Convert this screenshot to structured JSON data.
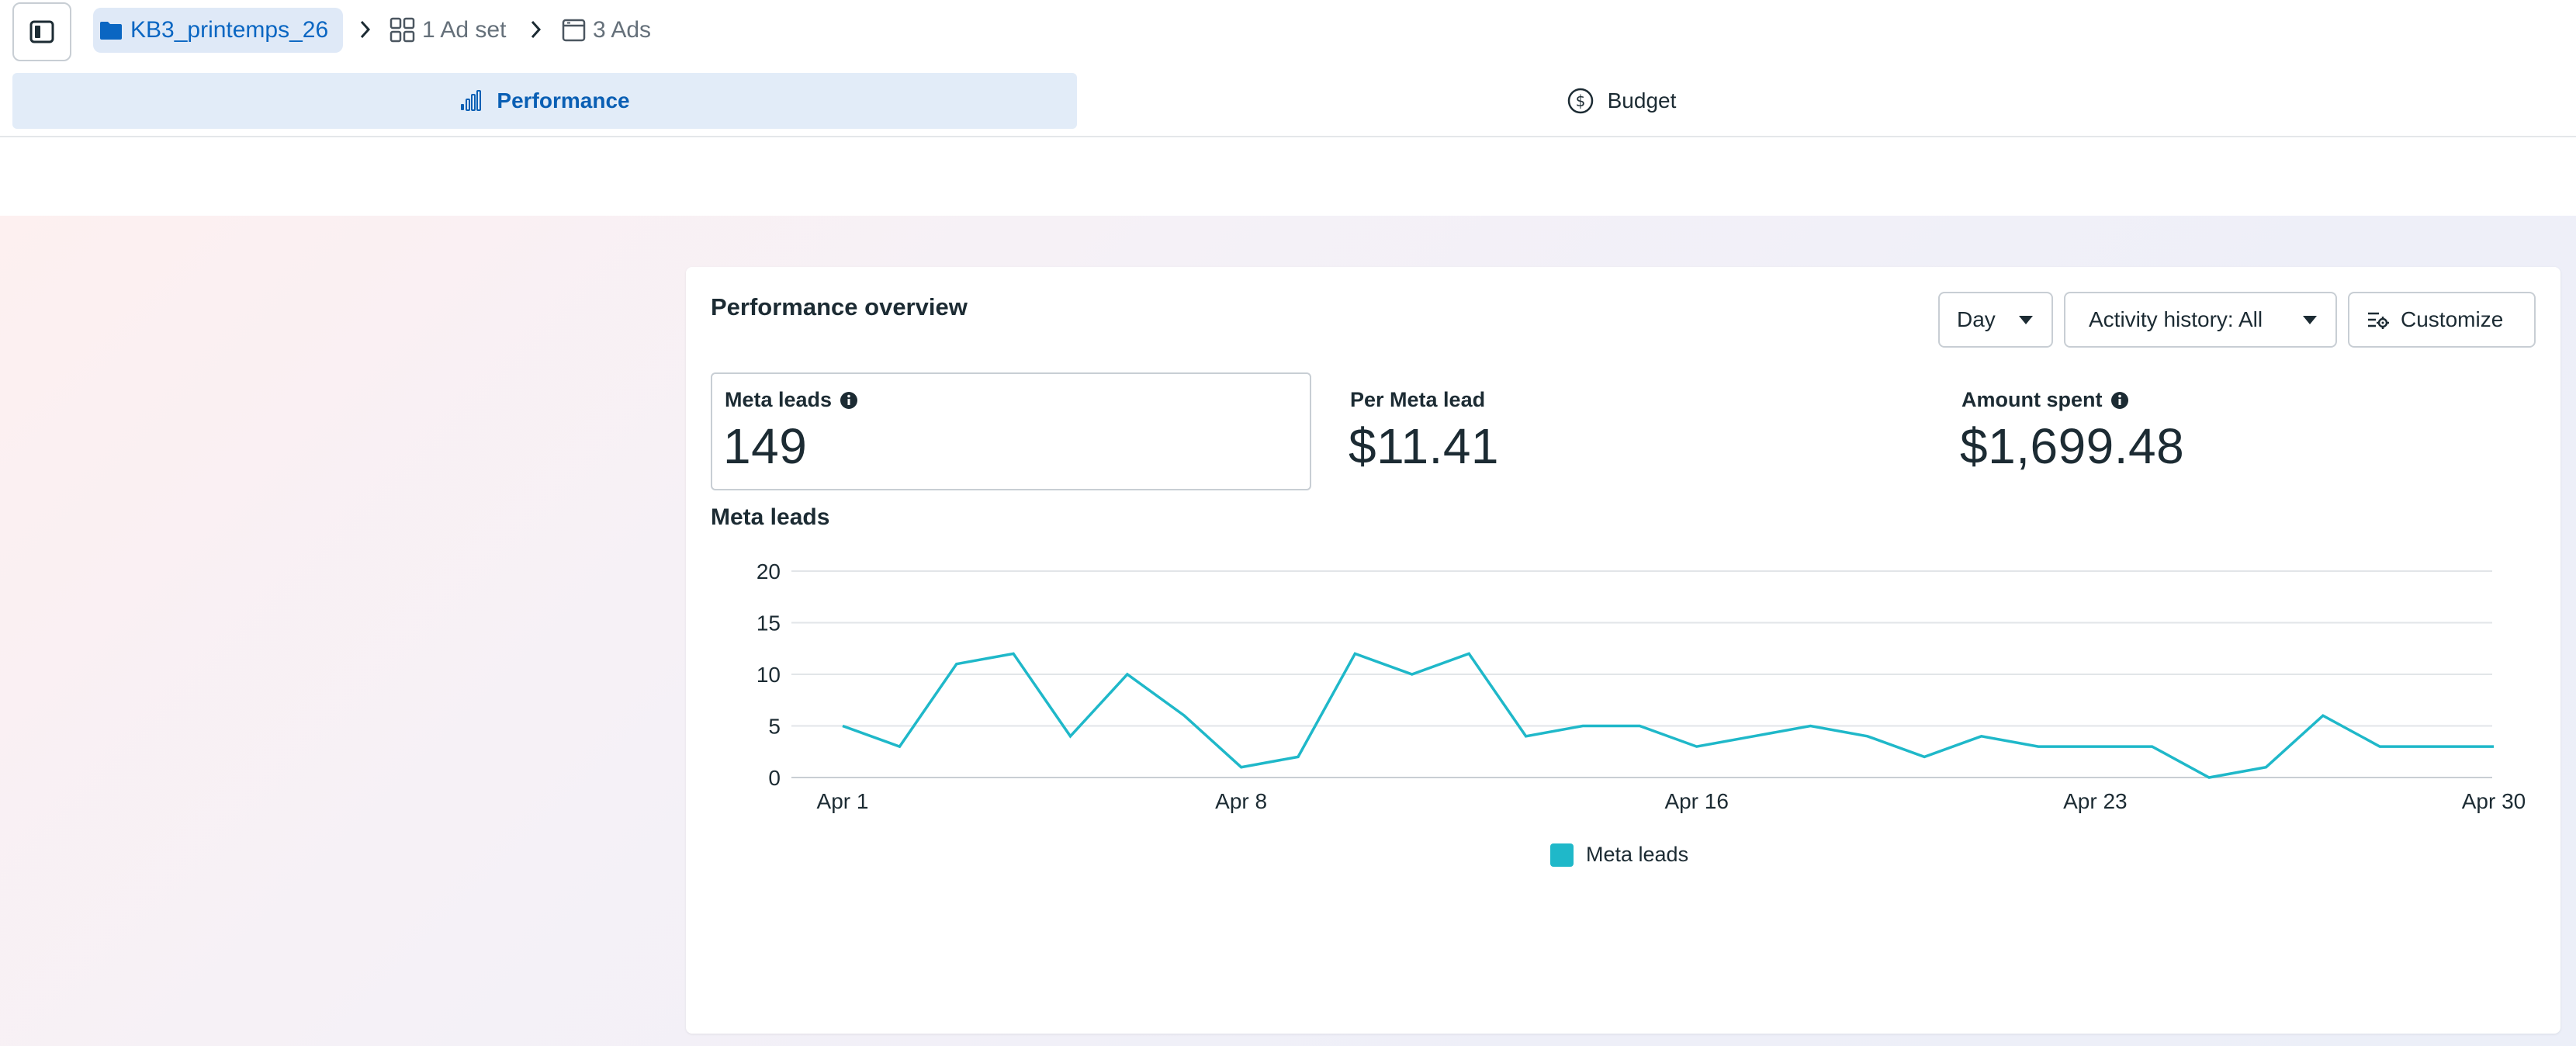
{
  "breadcrumb": {
    "campaign": "KB3_printemps_26",
    "adset": "1 Ad set",
    "ads": "3 Ads"
  },
  "tabs": {
    "performance": "Performance",
    "budget": "Budget"
  },
  "card": {
    "title": "Performance overview",
    "controls": {
      "day": "Day",
      "activity": "Activity history: All",
      "customize": "Customize"
    },
    "metrics": {
      "leads": {
        "label": "Meta leads",
        "value": "149"
      },
      "per_lead": {
        "label": "Per Meta lead",
        "value": "$11.41"
      },
      "spent": {
        "label": "Amount spent",
        "value": "$1,699.48"
      }
    },
    "chart_title": "Meta leads",
    "legend_label": "Meta leads"
  },
  "colors": {
    "accent": "#0a66c2",
    "series": "#1fb8c9"
  },
  "chart_data": {
    "type": "line",
    "title": "Meta leads",
    "xlabel": "",
    "ylabel": "",
    "x": [
      "Apr 1",
      "Apr 2",
      "Apr 3",
      "Apr 4",
      "Apr 5",
      "Apr 6",
      "Apr 7",
      "Apr 8",
      "Apr 9",
      "Apr 10",
      "Apr 11",
      "Apr 12",
      "Apr 13",
      "Apr 14",
      "Apr 15",
      "Apr 16",
      "Apr 17",
      "Apr 18",
      "Apr 19",
      "Apr 20",
      "Apr 21",
      "Apr 22",
      "Apr 23",
      "Apr 24",
      "Apr 25",
      "Apr 26",
      "Apr 27",
      "Apr 28",
      "Apr 29",
      "Apr 30"
    ],
    "x_ticks": [
      "Apr 1",
      "Apr 8",
      "Apr 16",
      "Apr 23",
      "Apr 30"
    ],
    "y_ticks": [
      0,
      5,
      10,
      15,
      20
    ],
    "ylim": [
      0,
      20
    ],
    "grid": true,
    "legend": "bottom-center",
    "series": [
      {
        "name": "Meta leads",
        "values": [
          5,
          3,
          11,
          12,
          4,
          10,
          6,
          1,
          2,
          12,
          10,
          12,
          4,
          5,
          5,
          3,
          4,
          5,
          4,
          2,
          4,
          3,
          3,
          3,
          0,
          1,
          6,
          3,
          3,
          3
        ]
      }
    ]
  }
}
